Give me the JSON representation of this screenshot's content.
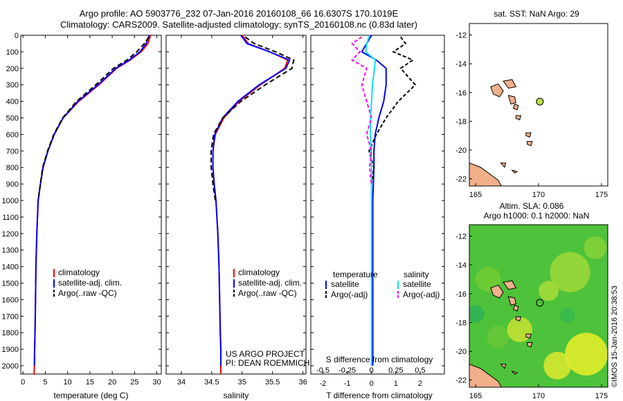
{
  "title": {
    "line1": "Argo profile: AO 5903776_232 07-Jan-2016 20160108_66 16.6307S 170.1019E",
    "line2": "Climatology: CARS2009. Satellite-adjusted climatology: synTS_20160108.nc (0.83d later)"
  },
  "credit": "©IMOS 15-Jan-2016 20:38:53",
  "colors": {
    "climatology": "#ff0000",
    "satellite": "#0000ff",
    "argo": "#000000",
    "sal_satellite": "#00e5ee",
    "sal_argo": "#ff00ff",
    "land": "#f0b08a",
    "argo_marker": "#b8e04a"
  },
  "chart_data": [
    {
      "type": "line",
      "name": "temperature",
      "xlabel": "temperature (deg C)",
      "ylabel": "",
      "xlim": [
        -0.5,
        31
      ],
      "ylim": [
        2050,
        0
      ],
      "xticks": [
        "0",
        "5",
        "10",
        "15",
        "20",
        "25",
        "30"
      ],
      "yticks": [
        "0",
        "100",
        "200",
        "300",
        "400",
        "500",
        "600",
        "700",
        "800",
        "900",
        "1000",
        "1100",
        "1200",
        "1300",
        "1400",
        "1500",
        "1600",
        "1700",
        "1800",
        "1900",
        "2000"
      ],
      "legend": [
        "climatology",
        "satellite-adj. clim.",
        "Argo(..raw -QC)"
      ],
      "series": [
        {
          "name": "climatology",
          "x": [
            28.6,
            28.0,
            26.5,
            24.0,
            21.0,
            17.0,
            12.5,
            9.0,
            7.0,
            5.6,
            4.5,
            3.9,
            3.4,
            3.1,
            2.9,
            2.8,
            2.7,
            2.6,
            2.55,
            2.5,
            2.4
          ],
          "depth": [
            0,
            50,
            100,
            150,
            200,
            300,
            400,
            500,
            600,
            700,
            800,
            900,
            1000,
            1200,
            1400,
            1600,
            1800,
            1900,
            2000,
            2050,
            2050
          ]
        },
        {
          "name": "satellite-adj. clim.",
          "x": [
            28.3,
            27.6,
            26.2,
            23.8,
            20.8,
            16.8,
            12.3,
            9.0,
            7.0,
            5.6,
            4.5,
            3.9,
            3.4,
            3.1,
            2.9,
            2.8,
            2.7,
            2.6,
            2.55
          ],
          "depth": [
            0,
            50,
            100,
            150,
            200,
            300,
            400,
            500,
            600,
            700,
            800,
            900,
            1000,
            1200,
            1400,
            1600,
            1800,
            1900,
            2000
          ]
        },
        {
          "name": "Argo(..raw -QC)",
          "x": [
            28.2,
            27.2,
            25.5,
            23.3,
            20.3,
            16.3,
            12.0,
            8.9,
            6.9,
            5.5,
            4.4,
            3.9,
            3.4
          ],
          "depth": [
            10,
            50,
            100,
            150,
            200,
            300,
            400,
            500,
            600,
            700,
            800,
            900,
            1000
          ]
        }
      ]
    },
    {
      "type": "line",
      "name": "salinity",
      "xlabel": "salinity",
      "xlim": [
        33.75,
        36.05
      ],
      "ylim": [
        2050,
        0
      ],
      "xticks": [
        "34",
        "34.5",
        "35",
        "35.5",
        "36"
      ],
      "legend": [
        "climatology",
        "satellite-adj. clim.",
        "Argo(..raw -QC)"
      ],
      "annotation": [
        "US ARGO PROJECT",
        "PI: DEAN ROEMMICH"
      ],
      "series": [
        {
          "name": "climatology",
          "x": [
            35.0,
            35.1,
            35.45,
            35.75,
            35.7,
            35.3,
            34.95,
            34.7,
            34.56,
            34.52,
            34.52,
            34.54,
            34.57,
            34.6,
            34.62,
            34.63,
            34.64,
            34.65,
            34.65,
            34.65
          ],
          "depth": [
            0,
            50,
            100,
            150,
            200,
            300,
            400,
            500,
            600,
            700,
            800,
            900,
            1000,
            1200,
            1400,
            1600,
            1800,
            1900,
            2000,
            2050
          ]
        },
        {
          "name": "satellite-adj. clim.",
          "x": [
            34.98,
            35.08,
            35.45,
            35.78,
            35.72,
            35.28,
            34.93,
            34.68,
            34.55,
            34.52,
            34.52,
            34.54,
            34.57,
            34.6,
            34.62,
            34.63,
            34.64,
            34.65,
            34.65
          ],
          "depth": [
            0,
            50,
            100,
            150,
            200,
            300,
            400,
            500,
            600,
            700,
            800,
            900,
            1000,
            1200,
            1400,
            1600,
            1800,
            1900,
            2000
          ]
        },
        {
          "name": "Argo(..raw -QC)",
          "x": [
            35.05,
            35.2,
            35.55,
            35.85,
            35.82,
            35.38,
            34.98,
            34.68,
            34.53,
            34.49,
            34.49,
            34.52,
            34.56
          ],
          "depth": [
            10,
            50,
            100,
            150,
            200,
            300,
            400,
            500,
            600,
            700,
            800,
            900,
            1000
          ]
        }
      ]
    },
    {
      "type": "line",
      "name": "difference",
      "xlabel": "T difference from climatology",
      "xlabel_top": "S difference from climatology",
      "xlim": [
        -2.5,
        3.0
      ],
      "xlim_salinity": [
        -0.625,
        0.75
      ],
      "ylim": [
        2050,
        0
      ],
      "xticks": [
        "-2",
        "-1",
        "0",
        "1",
        "2"
      ],
      "xticks_salinity": [
        "-0.5",
        "-0.25",
        "0",
        "0.25",
        "0.5"
      ],
      "legend_headers": [
        "temperature",
        "salinity"
      ],
      "legend": [
        "satellite",
        "Argo(-adj)",
        "satellite",
        "Argo(-adj)"
      ],
      "series": [
        {
          "name": "temperature satellite",
          "x": [
            0.0,
            -0.2,
            -0.4,
            0.2,
            0.6,
            0.6,
            0.5,
            0.3,
            0.15,
            0.1,
            0.1,
            0.05,
            0.05,
            0.05,
            0.05
          ],
          "depth": [
            0,
            50,
            100,
            150,
            200,
            300,
            400,
            500,
            600,
            700,
            800,
            1000,
            1400,
            1800,
            2000
          ]
        },
        {
          "name": "temperature Argo(-adj)",
          "x": [
            1.2,
            1.4,
            0.9,
            1.7,
            1.2,
            1.8,
            1.1,
            0.6,
            0.2,
            -0.1,
            0.1,
            0.0
          ],
          "depth": [
            10,
            50,
            100,
            150,
            200,
            300,
            400,
            500,
            600,
            700,
            800,
            900
          ]
        },
        {
          "name": "salinity satellite",
          "x": [
            -0.02,
            -0.05,
            -0.06,
            0.04,
            0.03,
            0.01,
            0.0,
            -0.01,
            -0.01,
            0.0,
            0.0,
            0.0,
            0.0
          ],
          "depth": [
            0,
            50,
            100,
            150,
            200,
            300,
            400,
            500,
            600,
            800,
            1000,
            1500,
            2000
          ]
        },
        {
          "name": "salinity Argo(-adj)",
          "x": [
            -0.1,
            -0.2,
            -0.12,
            -0.2,
            -0.05,
            -0.1,
            -0.05,
            0.0,
            -0.05,
            0.0,
            -0.02,
            0.0
          ],
          "depth": [
            10,
            50,
            100,
            150,
            200,
            300,
            400,
            500,
            600,
            700,
            800,
            900
          ]
        }
      ]
    },
    {
      "type": "scatter",
      "name": "sst-map",
      "title": "sat. SST: NaN Argo: 29",
      "xlim": [
        164.5,
        175.5
      ],
      "ylim": [
        -22.5,
        -11.2
      ],
      "xticks": [
        "165",
        "170",
        "175"
      ],
      "yticks": [
        "-12",
        "-14",
        "-16",
        "-18",
        "-20",
        "-22"
      ],
      "argo_position": {
        "lon": 170.1019,
        "lat": -16.6307
      }
    },
    {
      "type": "heatmap",
      "name": "sla-map",
      "title_line1": "Altim. SLA: 0.086",
      "title_line2": "Argo h1000: 0.1 h2000: NaN",
      "xlim": [
        164.5,
        175.5
      ],
      "ylim": [
        -22.5,
        -11.2
      ],
      "xticks": [
        "165",
        "170",
        "175"
      ],
      "yticks": [
        "-12",
        "-14",
        "-16",
        "-18",
        "-20",
        "-22"
      ],
      "argo_position": {
        "lon": 170.1019,
        "lat": -16.6307
      }
    }
  ]
}
